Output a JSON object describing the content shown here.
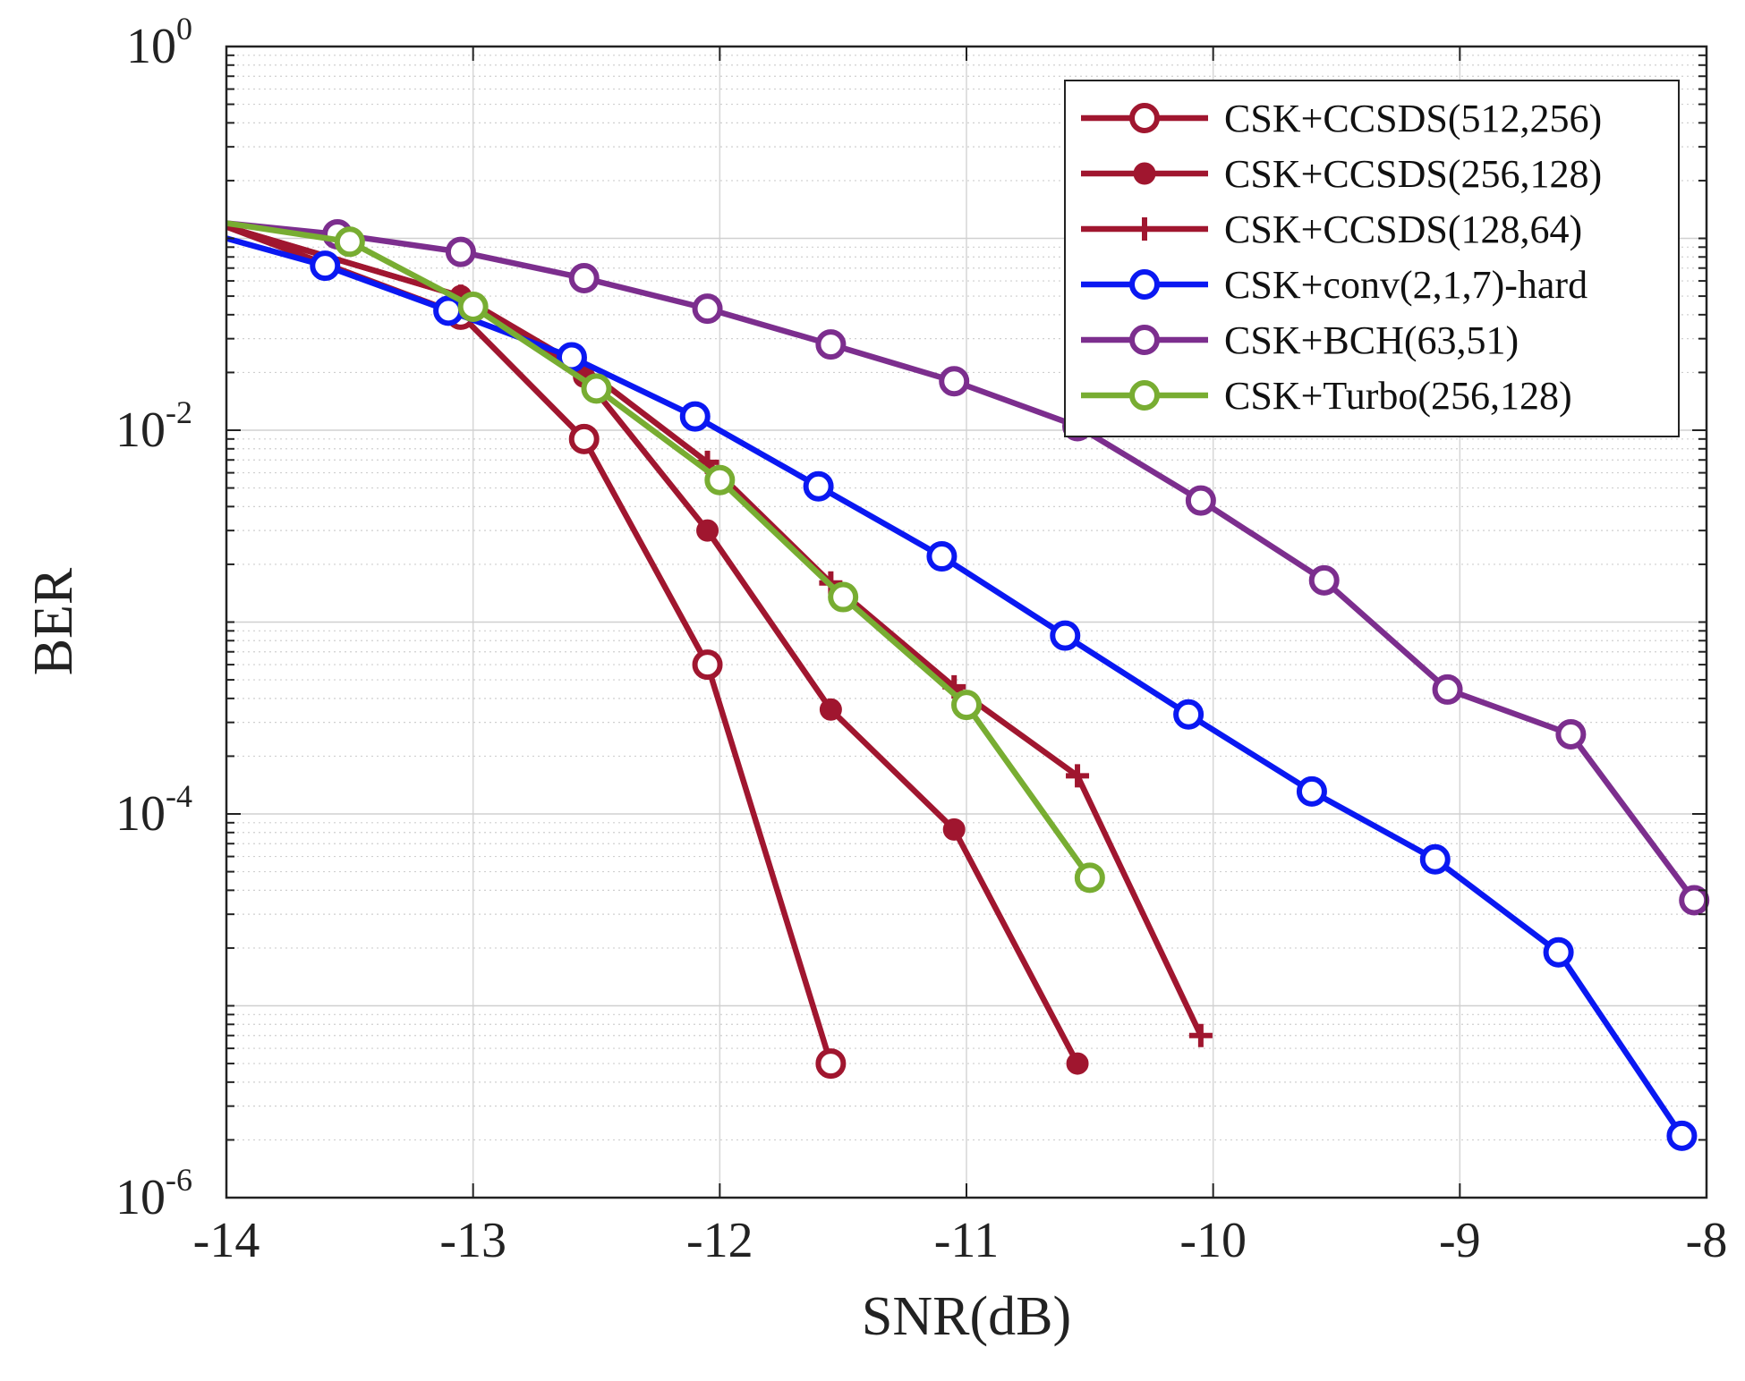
{
  "chart_data": {
    "type": "line",
    "xlabel": "SNR(dB)",
    "ylabel": "BER",
    "xlim": [
      -14,
      -8
    ],
    "ylim": [
      1e-06,
      1
    ],
    "yscale": "log",
    "x_ticks": [
      -14,
      -13,
      -12,
      -11,
      -10,
      -9,
      -8
    ],
    "x_tick_labels": [
      "-14",
      "-13",
      "-12",
      "-11",
      "-10",
      "-9",
      "-8"
    ],
    "y_ticks": [
      {
        "value": 1,
        "base": "10",
        "exp": "0"
      },
      {
        "value": 0.01,
        "base": "10",
        "exp": "-2"
      },
      {
        "value": 0.0001,
        "base": "10",
        "exp": "-4"
      },
      {
        "value": 1e-06,
        "base": "10",
        "exp": "-6"
      }
    ],
    "grid": true,
    "legend_position": "top-right",
    "series": [
      {
        "name": "CSK+CCSDS(512,256)",
        "color": "#a0162f",
        "marker": "circle-open",
        "x": [
          -14,
          -13.05,
          -12.55,
          -12.05,
          -11.55
        ],
        "y": [
          0.115,
          0.04,
          0.009,
          0.0006,
          5e-06
        ]
      },
      {
        "name": "CSK+CCSDS(256,128)",
        "color": "#a0162f",
        "marker": "circle-filled",
        "x": [
          -14,
          -13.05,
          -12.55,
          -12.05,
          -11.55,
          -11.05,
          -10.55
        ],
        "y": [
          0.115,
          0.05,
          0.019,
          0.003,
          0.00035,
          8.3e-05,
          5e-06
        ]
      },
      {
        "name": "CSK+CCSDS(128,64)",
        "color": "#a0162f",
        "marker": "plus",
        "x": [
          -14,
          -13.05,
          -12.55,
          -12.05,
          -11.55,
          -11.05,
          -10.55,
          -10.05
        ],
        "y": [
          0.115,
          0.05,
          0.021,
          0.0068,
          0.0016,
          0.00046,
          0.000158,
          7e-06
        ]
      },
      {
        "name": "CSK+conv(2,1,7)-hard",
        "color": "#0a18f2",
        "marker": "circle-open",
        "x": [
          -14,
          -13.6,
          -13.1,
          -12.6,
          -12.1,
          -11.6,
          -11.1,
          -10.6,
          -10.1,
          -9.6,
          -9.1,
          -8.6,
          -8.1
        ],
        "y": [
          0.1,
          0.072,
          0.042,
          0.024,
          0.0118,
          0.0051,
          0.0022,
          0.00085,
          0.00033,
          0.000131,
          5.8e-05,
          1.9e-05,
          2.1e-06
        ]
      },
      {
        "name": "CSK+BCH(63,51)",
        "color": "#7c2e8e",
        "marker": "circle-open",
        "x": [
          -14,
          -13.55,
          -13.05,
          -12.55,
          -12.05,
          -11.55,
          -11.05,
          -10.55,
          -10.05,
          -9.55,
          -9.05,
          -8.55,
          -8.05
        ],
        "y": [
          0.12,
          0.105,
          0.085,
          0.062,
          0.043,
          0.028,
          0.018,
          0.0105,
          0.0043,
          0.00165,
          0.000445,
          0.00026,
          3.55e-05
        ]
      },
      {
        "name": "CSK+Turbo(256,128)",
        "color": "#78ad32",
        "marker": "circle-open",
        "x": [
          -14,
          -13.5,
          -13,
          -12.5,
          -12,
          -11.5,
          -11,
          -10.5
        ],
        "y": [
          0.12,
          0.096,
          0.044,
          0.0165,
          0.0055,
          0.00135,
          0.00037,
          4.65e-05
        ]
      }
    ]
  }
}
